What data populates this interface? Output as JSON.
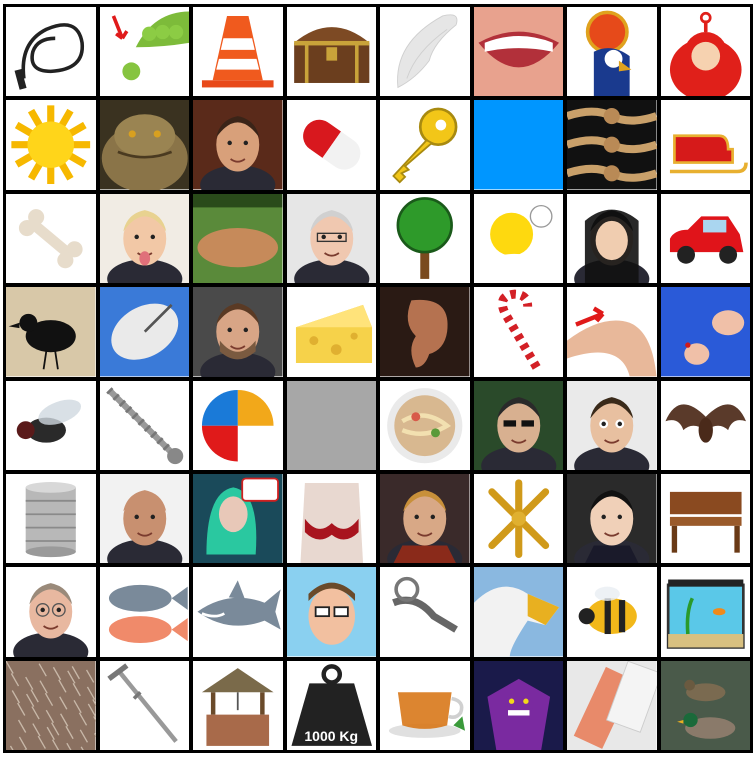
{
  "grid": {
    "rows": 8,
    "cols": 8,
    "cells": [
      {
        "icon": "whip-icon"
      },
      {
        "icon": "pea-pod-icon"
      },
      {
        "icon": "traffic-cone-icon"
      },
      {
        "icon": "treasure-chest-icon"
      },
      {
        "icon": "angel-wing-icon"
      },
      {
        "icon": "smiling-mouth-icon"
      },
      {
        "icon": "egyptian-falcon-god-icon"
      },
      {
        "icon": "teletubby-icon"
      },
      {
        "icon": "sun-icon"
      },
      {
        "icon": "jabba-icon"
      },
      {
        "icon": "man-portrait-icon"
      },
      {
        "icon": "pill-capsule-icon"
      },
      {
        "icon": "key-icon"
      },
      {
        "icon": "blue-square-icon",
        "color": "#0096ff"
      },
      {
        "icon": "rope-knots-icon"
      },
      {
        "icon": "sleigh-icon"
      },
      {
        "icon": "bone-icon"
      },
      {
        "icon": "girl-tongue-icon"
      },
      {
        "icon": "baseball-field-icon"
      },
      {
        "icon": "grey-haired-man-icon"
      },
      {
        "icon": "tree-icon"
      },
      {
        "icon": "homer-doh-icon"
      },
      {
        "icon": "nun-icon"
      },
      {
        "icon": "red-car-icon"
      },
      {
        "icon": "crow-icon"
      },
      {
        "icon": "satellite-dish-icon"
      },
      {
        "icon": "bearded-man-icon"
      },
      {
        "icon": "cheese-icon"
      },
      {
        "icon": "ear-icon"
      },
      {
        "icon": "candy-cane-icon"
      },
      {
        "icon": "legs-knee-icon"
      },
      {
        "icon": "sewing-icon"
      },
      {
        "icon": "fly-icon"
      },
      {
        "icon": "screw-icon"
      },
      {
        "icon": "beach-ball-icon"
      },
      {
        "icon": "grey-square-icon",
        "color": "#a7a7a7"
      },
      {
        "icon": "noodle-soup-icon"
      },
      {
        "icon": "agent-sunglasses-icon"
      },
      {
        "icon": "mr-bean-icon"
      },
      {
        "icon": "bat-icon"
      },
      {
        "icon": "tin-can-icon"
      },
      {
        "icon": "bald-man-icon"
      },
      {
        "icon": "green-hair-singer-icon"
      },
      {
        "icon": "bra-mannequin-icon"
      },
      {
        "icon": "thor-icon"
      },
      {
        "icon": "jacks-toy-icon"
      },
      {
        "icon": "student-girl-icon"
      },
      {
        "icon": "wooden-bench-icon"
      },
      {
        "icon": "smiling-man-glasses-icon"
      },
      {
        "icon": "tilapia-fish-icon"
      },
      {
        "icon": "shark-icon"
      },
      {
        "icon": "cartoon-man-glasses-icon"
      },
      {
        "icon": "spur-icon"
      },
      {
        "icon": "eagle-icon"
      },
      {
        "icon": "bee-icon"
      },
      {
        "icon": "aquarium-icon"
      },
      {
        "icon": "fur-texture-icon"
      },
      {
        "icon": "crutch-icon"
      },
      {
        "icon": "wishing-well-icon"
      },
      {
        "icon": "weight-icon",
        "label": "1000 Kg"
      },
      {
        "icon": "tea-cup-icon"
      },
      {
        "icon": "zurg-icon"
      },
      {
        "icon": "chewing-gum-icon"
      },
      {
        "icon": "ducks-icon"
      }
    ]
  }
}
